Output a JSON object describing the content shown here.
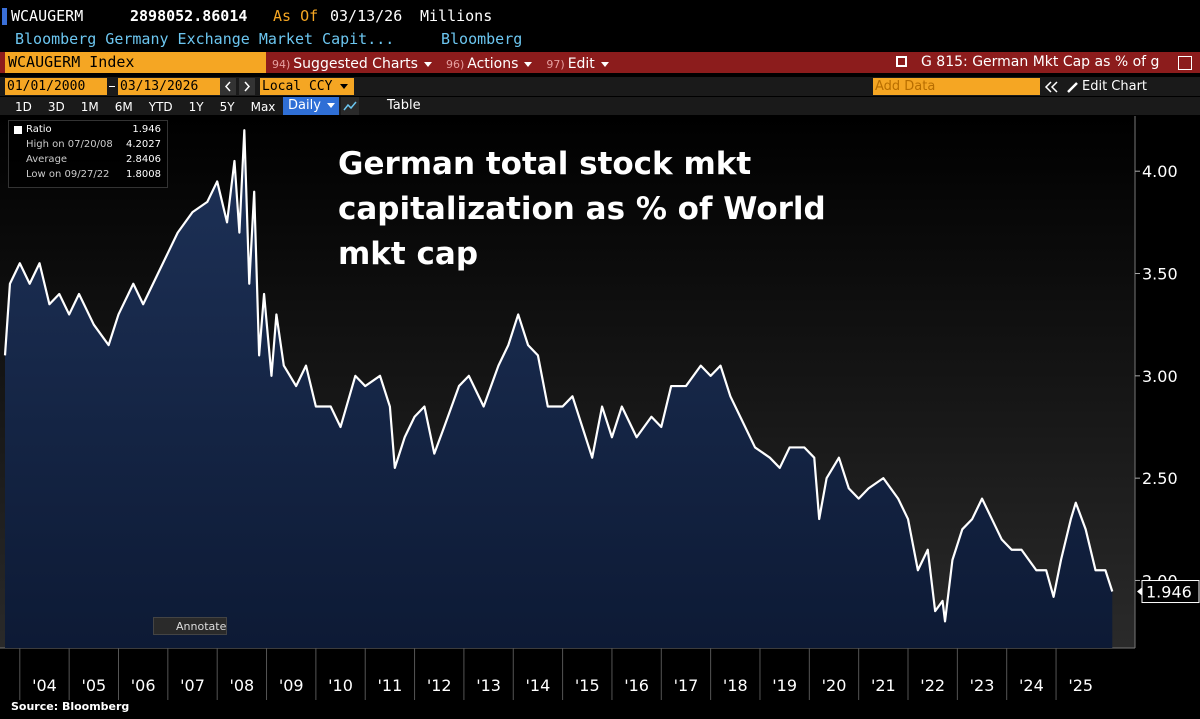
{
  "header": {
    "ticker": "WCAUGERM",
    "value": "2898052.86014",
    "as_of": "As Of",
    "date": "03/13/26",
    "units": "Millions",
    "description": "Bloomberg Germany Exchange Market Capit...",
    "source_name": "Bloomberg"
  },
  "toolbar": {
    "security": "WCAUGERM Index",
    "menus": [
      {
        "code": "94)",
        "label": "Suggested Charts"
      },
      {
        "code": "96)",
        "label": "Actions"
      },
      {
        "code": "97)",
        "label": "Edit"
      }
    ],
    "chart_title": "G 815: German Mkt Cap as % of g"
  },
  "range": {
    "start": "01/01/2000",
    "end": "03/13/2026",
    "currency": "Local CCY",
    "add_data": "Add Data",
    "edit_chart": "Edit Chart"
  },
  "periods": [
    "1D",
    "3D",
    "1M",
    "6M",
    "YTD",
    "1Y",
    "5Y",
    "Max"
  ],
  "frequency": "Daily",
  "table": "Table",
  "annotate": "Annotate",
  "footer": {
    "source": "Source: Bloomberg"
  },
  "chart_data": {
    "type": "line",
    "title": "German total stock mkt capitalization as % of World mkt cap",
    "x": [
      2003.7,
      2003.8,
      2004.0,
      2004.2,
      2004.4,
      2004.6,
      2004.8,
      2005.0,
      2005.2,
      2005.5,
      2005.8,
      2006.0,
      2006.3,
      2006.5,
      2006.8,
      2007.0,
      2007.2,
      2007.5,
      2007.8,
      2008.0,
      2008.2,
      2008.35,
      2008.45,
      2008.55,
      2008.65,
      2008.75,
      2008.85,
      2008.95,
      2009.1,
      2009.2,
      2009.35,
      2009.6,
      2009.8,
      2010.0,
      2010.3,
      2010.5,
      2010.8,
      2011.0,
      2011.3,
      2011.5,
      2011.6,
      2011.8,
      2012.0,
      2012.2,
      2012.4,
      2012.6,
      2012.9,
      2013.1,
      2013.4,
      2013.7,
      2013.9,
      2014.1,
      2014.3,
      2014.5,
      2014.7,
      2015.0,
      2015.2,
      2015.4,
      2015.6,
      2015.8,
      2016.0,
      2016.2,
      2016.5,
      2016.8,
      2017.0,
      2017.2,
      2017.5,
      2017.8,
      2018.0,
      2018.2,
      2018.4,
      2018.6,
      2018.9,
      2019.2,
      2019.4,
      2019.6,
      2019.9,
      2020.1,
      2020.2,
      2020.35,
      2020.6,
      2020.8,
      2021.0,
      2021.2,
      2021.5,
      2021.8,
      2022.0,
      2022.2,
      2022.4,
      2022.55,
      2022.7,
      2022.75,
      2022.9,
      2023.1,
      2023.3,
      2023.5,
      2023.7,
      2023.9,
      2024.1,
      2024.3,
      2024.6,
      2024.8,
      2024.95,
      2025.1,
      2025.3,
      2025.4,
      2025.6,
      2025.8,
      2026.0,
      2026.14
    ],
    "series": [
      {
        "name": "Ratio",
        "color": "#ffffff",
        "fill": "#14264a",
        "values": [
          3.1,
          3.45,
          3.55,
          3.45,
          3.55,
          3.35,
          3.4,
          3.3,
          3.4,
          3.25,
          3.15,
          3.3,
          3.45,
          3.35,
          3.5,
          3.6,
          3.7,
          3.8,
          3.85,
          3.95,
          3.75,
          4.05,
          3.7,
          4.2,
          3.45,
          3.9,
          3.1,
          3.4,
          3.0,
          3.3,
          3.05,
          2.95,
          3.05,
          2.85,
          2.85,
          2.75,
          3.0,
          2.95,
          3.0,
          2.85,
          2.55,
          2.7,
          2.8,
          2.85,
          2.62,
          2.75,
          2.95,
          3.0,
          2.85,
          3.05,
          3.15,
          3.3,
          3.15,
          3.1,
          2.85,
          2.85,
          2.9,
          2.75,
          2.6,
          2.85,
          2.7,
          2.85,
          2.7,
          2.8,
          2.75,
          2.95,
          2.95,
          3.05,
          3.0,
          3.05,
          2.9,
          2.8,
          2.65,
          2.6,
          2.55,
          2.65,
          2.65,
          2.6,
          2.3,
          2.5,
          2.6,
          2.45,
          2.4,
          2.45,
          2.5,
          2.4,
          2.3,
          2.05,
          2.15,
          1.85,
          1.9,
          1.8,
          2.1,
          2.25,
          2.3,
          2.4,
          2.3,
          2.2,
          2.15,
          2.15,
          2.05,
          2.05,
          1.92,
          2.1,
          2.3,
          2.38,
          2.25,
          2.05,
          2.05,
          1.946
        ]
      }
    ],
    "legend_stats": {
      "high_label": "High on 07/20/08",
      "high": 4.2027,
      "average_label": "Average",
      "average": 2.8406,
      "low_label": "Low on 09/27/22",
      "low": 1.8008
    },
    "xlim": [
      2003.7,
      2026.6
    ],
    "xticks": [
      {
        "value": 2004,
        "label": "'04"
      },
      {
        "value": 2005,
        "label": "'05"
      },
      {
        "value": 2006,
        "label": "'06"
      },
      {
        "value": 2007,
        "label": "'07"
      },
      {
        "value": 2008,
        "label": "'08"
      },
      {
        "value": 2009,
        "label": "'09"
      },
      {
        "value": 2010,
        "label": "'10"
      },
      {
        "value": 2011,
        "label": "'11"
      },
      {
        "value": 2012,
        "label": "'12"
      },
      {
        "value": 2013,
        "label": "'13"
      },
      {
        "value": 2014,
        "label": "'14"
      },
      {
        "value": 2015,
        "label": "'15"
      },
      {
        "value": 2016,
        "label": "'16"
      },
      {
        "value": 2017,
        "label": "'17"
      },
      {
        "value": 2018,
        "label": "'18"
      },
      {
        "value": 2019,
        "label": "'19"
      },
      {
        "value": 2020,
        "label": "'20"
      },
      {
        "value": 2021,
        "label": "'21"
      },
      {
        "value": 2022,
        "label": "'22"
      },
      {
        "value": 2023,
        "label": "'23"
      },
      {
        "value": 2024,
        "label": "'24"
      },
      {
        "value": 2025,
        "label": "'25"
      }
    ],
    "ylim": [
      1.67,
      4.26
    ],
    "yticks": [
      {
        "value": 2,
        "label": "2.00"
      },
      {
        "value": 2.5,
        "label": "2.50"
      },
      {
        "value": 3,
        "label": "3.00"
      },
      {
        "value": 3.5,
        "label": "3.50"
      },
      {
        "value": 4,
        "label": "4.00"
      }
    ],
    "grid": false
  }
}
